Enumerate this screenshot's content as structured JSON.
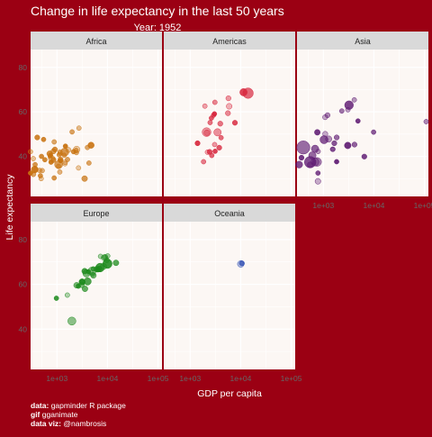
{
  "title": "Change in life expectancy in the last 50 years",
  "subtitle": "Year: 1952",
  "xlabel": "GDP per capita",
  "ylabel": "Life expectancy",
  "caption": {
    "line1_bold": "data:",
    "line1": "gapminder R package",
    "line2_bold": "gif",
    "line2": "gganimate",
    "line3_bold": "data viz:",
    "line3": "@nambrosis"
  },
  "colors": {
    "background": "#9b0013",
    "panel": "#fcf7f4",
    "strip": "#d9d9d9",
    "text": "#ffffff"
  },
  "chart_data": {
    "type": "scatter",
    "x_scale": "log10",
    "xlim": [
      300,
      120000
    ],
    "ylim": [
      22,
      88
    ],
    "x_ticks": [
      1000,
      10000,
      100000
    ],
    "x_tick_labels": [
      "1e+03",
      "1e+04",
      "1e+05"
    ],
    "y_ticks": [
      40,
      60,
      80
    ],
    "y_tick_labels": [
      "40",
      "60",
      "80"
    ],
    "grid": true,
    "facets": [
      {
        "name": "Africa",
        "color": "#c8720f",
        "points": [
          {
            "x": 2449,
            "y": 43.1,
            "s": 2
          },
          {
            "x": 3521,
            "y": 30.0,
            "s": 1.5
          },
          {
            "x": 851,
            "y": 38.2,
            "s": 1
          },
          {
            "x": 543,
            "y": 47.6,
            "s": 1
          },
          {
            "x": 340,
            "y": 32.0,
            "s": 1.2
          },
          {
            "x": 339,
            "y": 39.0,
            "s": 1
          },
          {
            "x": 1173,
            "y": 38.5,
            "s": 1.3
          },
          {
            "x": 1071,
            "y": 35.5,
            "s": 1
          },
          {
            "x": 1179,
            "y": 38.1,
            "s": 1
          },
          {
            "x": 1103,
            "y": 40.7,
            "s": 1
          },
          {
            "x": 781,
            "y": 39.1,
            "s": 1.8
          },
          {
            "x": 2126,
            "y": 42.1,
            "s": 1
          },
          {
            "x": 1389,
            "y": 40.5,
            "s": 1
          },
          {
            "x": 2670,
            "y": 34.8,
            "s": 1
          },
          {
            "x": 1419,
            "y": 41.9,
            "s": 3
          },
          {
            "x": 376,
            "y": 34.1,
            "s": 1
          },
          {
            "x": 362,
            "y": 34.1,
            "s": 2.2
          },
          {
            "x": 4293,
            "y": 37.0,
            "s": 1
          },
          {
            "x": 486,
            "y": 30.0,
            "s": 1
          },
          {
            "x": 911,
            "y": 43.1,
            "s": 1.2
          },
          {
            "x": 510,
            "y": 33.6,
            "s": 1
          },
          {
            "x": 299,
            "y": 32.5,
            "s": 1
          },
          {
            "x": 853,
            "y": 42.3,
            "s": 1.3
          },
          {
            "x": 298,
            "y": 42.1,
            "s": 1
          },
          {
            "x": 575,
            "y": 38.5,
            "s": 1
          },
          {
            "x": 2388,
            "y": 42.7,
            "s": 1
          },
          {
            "x": 1443,
            "y": 36.7,
            "s": 1
          },
          {
            "x": 369,
            "y": 36.3,
            "s": 1
          },
          {
            "x": 452,
            "y": 33.7,
            "s": 1
          },
          {
            "x": 744,
            "y": 40.5,
            "s": 1
          },
          {
            "x": 1989,
            "y": 50.99,
            "s": 1
          },
          {
            "x": 1688,
            "y": 42.9,
            "s": 1.2
          },
          {
            "x": 469,
            "y": 31.3,
            "s": 1
          },
          {
            "x": 2424,
            "y": 41.7,
            "s": 1
          },
          {
            "x": 762,
            "y": 37.4,
            "s": 1
          },
          {
            "x": 1077,
            "y": 36.3,
            "s": 3
          },
          {
            "x": 2719,
            "y": 52.7,
            "s": 1
          },
          {
            "x": 493,
            "y": 40.0,
            "s": 1
          },
          {
            "x": 880,
            "y": 46.5,
            "s": 1
          },
          {
            "x": 1450,
            "y": 37.3,
            "s": 1
          },
          {
            "x": 879,
            "y": 30.3,
            "s": 1
          },
          {
            "x": 1136,
            "y": 32.98,
            "s": 1
          },
          {
            "x": 4725,
            "y": 45.0,
            "s": 1.8
          },
          {
            "x": 1616,
            "y": 38.6,
            "s": 1
          },
          {
            "x": 1148,
            "y": 41.4,
            "s": 1
          },
          {
            "x": 716,
            "y": 41.2,
            "s": 1.5
          },
          {
            "x": 859,
            "y": 38.6,
            "s": 1
          },
          {
            "x": 1468,
            "y": 44.6,
            "s": 1
          },
          {
            "x": 734,
            "y": 39.98,
            "s": 1
          },
          {
            "x": 1147,
            "y": 42.0,
            "s": 1
          },
          {
            "x": 406,
            "y": 48.5,
            "s": 1.2
          },
          {
            "x": 4000,
            "y": 44.0,
            "s": 1
          }
        ]
      },
      {
        "name": "Americas",
        "color": "#d7263d",
        "points": [
          {
            "x": 5911,
            "y": 62.5,
            "s": 1.5
          },
          {
            "x": 2677,
            "y": 40.4,
            "s": 1
          },
          {
            "x": 2109,
            "y": 50.9,
            "s": 3.5
          },
          {
            "x": 11367,
            "y": 68.8,
            "s": 2.5
          },
          {
            "x": 3940,
            "y": 54.7,
            "s": 1.2
          },
          {
            "x": 2144,
            "y": 50.6,
            "s": 1.5
          },
          {
            "x": 2628,
            "y": 57.2,
            "s": 1
          },
          {
            "x": 5587,
            "y": 59.4,
            "s": 1.2
          },
          {
            "x": 1398,
            "y": 45.9,
            "s": 1.2
          },
          {
            "x": 4086,
            "y": 48.4,
            "s": 1
          },
          {
            "x": 3048,
            "y": 45.3,
            "s": 1
          },
          {
            "x": 2428,
            "y": 42.0,
            "s": 1.2
          },
          {
            "x": 1840,
            "y": 37.6,
            "s": 1
          },
          {
            "x": 2195,
            "y": 41.9,
            "s": 1
          },
          {
            "x": 2898,
            "y": 58.5,
            "s": 1
          },
          {
            "x": 3478,
            "y": 50.8,
            "s": 2.5
          },
          {
            "x": 3112,
            "y": 42.3,
            "s": 1
          },
          {
            "x": 2480,
            "y": 55.2,
            "s": 1
          },
          {
            "x": 1952,
            "y": 62.6,
            "s": 1
          },
          {
            "x": 3759,
            "y": 43.9,
            "s": 1.2
          },
          {
            "x": 3082,
            "y": 64.3,
            "s": 1
          },
          {
            "x": 3023,
            "y": 59.1,
            "s": 1
          },
          {
            "x": 13990,
            "y": 68.4,
            "s": 5
          },
          {
            "x": 5717,
            "y": 66.1,
            "s": 1.2
          },
          {
            "x": 7690,
            "y": 55.1,
            "s": 1.2
          }
        ]
      },
      {
        "name": "Asia",
        "color": "#5e1a72",
        "points": [
          {
            "x": 779,
            "y": 28.8,
            "s": 1.5
          },
          {
            "x": 9867,
            "y": 50.9,
            "s": 1
          },
          {
            "x": 684,
            "y": 37.5,
            "s": 3
          },
          {
            "x": 368,
            "y": 39.4,
            "s": 1.2
          },
          {
            "x": 400,
            "y": 44.0,
            "s": 8
          },
          {
            "x": 3054,
            "y": 60.96,
            "s": 1
          },
          {
            "x": 547,
            "y": 37.4,
            "s": 6
          },
          {
            "x": 750,
            "y": 37.5,
            "s": 3.5
          },
          {
            "x": 3035,
            "y": 44.9,
            "s": 2
          },
          {
            "x": 4129,
            "y": 45.3,
            "s": 1.2
          },
          {
            "x": 4087,
            "y": 65.4,
            "s": 1
          },
          {
            "x": 3217,
            "y": 63.0,
            "s": 3.5
          },
          {
            "x": 1547,
            "y": 43.2,
            "s": 1
          },
          {
            "x": 1088,
            "y": 50.1,
            "s": 1.2
          },
          {
            "x": 1030,
            "y": 47.5,
            "s": 3
          },
          {
            "x": 108382,
            "y": 55.6,
            "s": 1
          },
          {
            "x": 4835,
            "y": 55.9,
            "s": 1
          },
          {
            "x": 1832,
            "y": 48.5,
            "s": 1.2
          },
          {
            "x": 786,
            "y": 42.2,
            "s": 1
          },
          {
            "x": 331,
            "y": 36.3,
            "s": 2.2
          },
          {
            "x": 546,
            "y": 36.2,
            "s": 1.5
          },
          {
            "x": 1828,
            "y": 37.6,
            "s": 1
          },
          {
            "x": 684,
            "y": 43.4,
            "s": 2.5
          },
          {
            "x": 1273,
            "y": 47.8,
            "s": 1.8
          },
          {
            "x": 6460,
            "y": 39.9,
            "s": 1.2
          },
          {
            "x": 2315,
            "y": 60.4,
            "s": 1
          },
          {
            "x": 1083,
            "y": 57.6,
            "s": 1.2
          },
          {
            "x": 1644,
            "y": 45.9,
            "s": 1.2
          },
          {
            "x": 1206,
            "y": 58.5,
            "s": 1.2
          },
          {
            "x": 758,
            "y": 50.8,
            "s": 1.5
          },
          {
            "x": 605,
            "y": 40.4,
            "s": 2.5
          },
          {
            "x": 1516,
            "y": 43.2,
            "s": 1
          },
          {
            "x": 781,
            "y": 32.5,
            "s": 1
          }
        ]
      },
      {
        "name": "Europe",
        "color": "#1d8a1d",
        "points": [
          {
            "x": 1601,
            "y": 55.2,
            "s": 1
          },
          {
            "x": 6137,
            "y": 66.8,
            "s": 1.5
          },
          {
            "x": 8343,
            "y": 68.0,
            "s": 1.8
          },
          {
            "x": 973,
            "y": 53.8,
            "s": 1
          },
          {
            "x": 2444,
            "y": 59.6,
            "s": 1.5
          },
          {
            "x": 3119,
            "y": 61.2,
            "s": 1
          },
          {
            "x": 6876,
            "y": 66.9,
            "s": 1.5
          },
          {
            "x": 9692,
            "y": 70.8,
            "s": 1.2
          },
          {
            "x": 6425,
            "y": 66.6,
            "s": 1.2
          },
          {
            "x": 7030,
            "y": 67.4,
            "s": 3
          },
          {
            "x": 7144,
            "y": 67.5,
            "s": 3.5
          },
          {
            "x": 3531,
            "y": 65.9,
            "s": 1.5
          },
          {
            "x": 5264,
            "y": 64.0,
            "s": 1.5
          },
          {
            "x": 7268,
            "y": 72.5,
            "s": 1
          },
          {
            "x": 5211,
            "y": 66.9,
            "s": 1
          },
          {
            "x": 4931,
            "y": 65.9,
            "s": 3
          },
          {
            "x": 2648,
            "y": 59.2,
            "s": 1
          },
          {
            "x": 8941,
            "y": 72.1,
            "s": 1.5
          },
          {
            "x": 10095,
            "y": 72.7,
            "s": 1
          },
          {
            "x": 4029,
            "y": 61.3,
            "s": 2.5
          },
          {
            "x": 3068,
            "y": 59.8,
            "s": 1.5
          },
          {
            "x": 3145,
            "y": 61.1,
            "s": 1.8
          },
          {
            "x": 3581,
            "y": 58.0,
            "s": 1.5
          },
          {
            "x": 5074,
            "y": 64.4,
            "s": 1
          },
          {
            "x": 4215,
            "y": 65.6,
            "s": 1
          },
          {
            "x": 3834,
            "y": 64.9,
            "s": 2.5
          },
          {
            "x": 8528,
            "y": 71.9,
            "s": 1.5
          },
          {
            "x": 14734,
            "y": 69.6,
            "s": 1.5
          },
          {
            "x": 1969,
            "y": 43.6,
            "s": 3
          },
          {
            "x": 9980,
            "y": 69.2,
            "s": 4
          }
        ]
      },
      {
        "name": "Oceania",
        "color": "#2747b0",
        "points": [
          {
            "x": 10040,
            "y": 69.1,
            "s": 2
          },
          {
            "x": 10557,
            "y": 69.4,
            "s": 1.2
          }
        ]
      }
    ]
  }
}
